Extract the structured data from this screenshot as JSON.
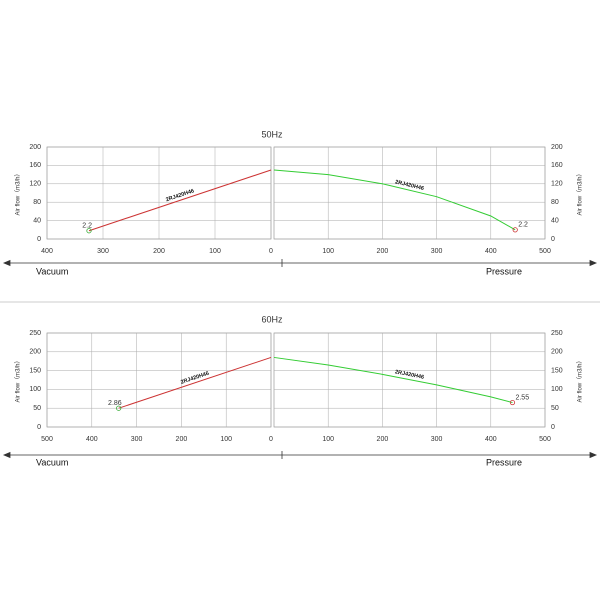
{
  "chart_data": [
    {
      "type": "line",
      "title": "50Hz",
      "x_label": "Vacuum",
      "y_label": "Air flow（m3/h）",
      "xlim": [
        400,
        0
      ],
      "xticks": [
        400,
        300,
        200,
        100,
        0
      ],
      "ylim": [
        0,
        200
      ],
      "yticks": [
        0,
        40,
        80,
        120,
        160,
        200
      ],
      "grid": true,
      "x": [
        325,
        0
      ],
      "series": [
        {
          "name": "2RJ420H46",
          "color": "#cc3333",
          "values": [
            18,
            150
          ]
        }
      ],
      "annotations": [
        {
          "text": "2.2",
          "x": 325,
          "y": 18
        }
      ]
    },
    {
      "type": "line",
      "x_label": "Pressure",
      "y_label": "Air flow（m3/h）",
      "xlim": [
        0,
        500
      ],
      "xticks": [
        100,
        200,
        300,
        400,
        500
      ],
      "ylim": [
        0,
        200
      ],
      "yticks": [
        0,
        40,
        80,
        120,
        160,
        200
      ],
      "grid": true,
      "x": [
        0,
        100,
        200,
        300,
        400,
        445
      ],
      "series": [
        {
          "name": "2RJ420H46",
          "color": "#33cc33",
          "values": [
            150,
            140,
            120,
            92,
            50,
            20
          ]
        }
      ],
      "annotations": [
        {
          "text": "2.2",
          "x": 445,
          "y": 20
        }
      ]
    },
    {
      "type": "line",
      "title": "60Hz",
      "x_label": "Vacuum",
      "y_label": "Air flow（m3/h）",
      "xlim": [
        500,
        0
      ],
      "xticks": [
        500,
        400,
        300,
        200,
        100,
        0
      ],
      "ylim": [
        0,
        250
      ],
      "yticks": [
        0,
        50,
        100,
        150,
        200,
        250
      ],
      "grid": true,
      "x": [
        340,
        0
      ],
      "series": [
        {
          "name": "2RJ420H46",
          "color": "#cc3333",
          "values": [
            50,
            185
          ]
        }
      ],
      "annotations": [
        {
          "text": "2.86",
          "x": 340,
          "y": 50
        }
      ]
    },
    {
      "type": "line",
      "x_label": "Pressure",
      "y_label": "Air flow（m3/h）",
      "xlim": [
        0,
        500
      ],
      "xticks": [
        100,
        200,
        300,
        400,
        500
      ],
      "ylim": [
        0,
        250
      ],
      "yticks": [
        0,
        50,
        100,
        150,
        200,
        250
      ],
      "grid": true,
      "x": [
        0,
        100,
        200,
        300,
        400,
        440
      ],
      "series": [
        {
          "name": "2RJ420H46",
          "color": "#33cc33",
          "values": [
            185,
            165,
            140,
            112,
            80,
            65
          ]
        }
      ],
      "annotations": [
        {
          "text": "2.55",
          "x": 440,
          "y": 65
        }
      ]
    }
  ]
}
